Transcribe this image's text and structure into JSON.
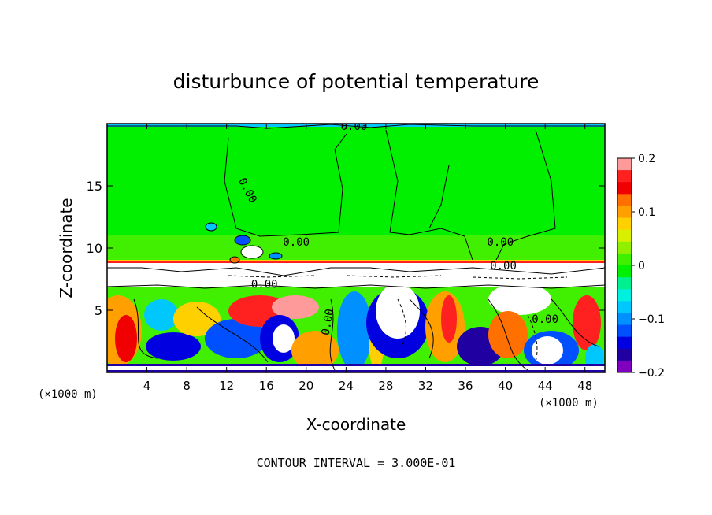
{
  "chart_data": {
    "type": "heatmap",
    "title": "disturbunce of potential temperature",
    "xlabel": "X-coordinate",
    "ylabel": "Z-coordinate",
    "x_unit": "(×1000 m)",
    "z_unit": "(×1000 m)",
    "x_range": [
      0,
      50
    ],
    "z_range": [
      0,
      20
    ],
    "x_ticks": [
      4,
      8,
      12,
      16,
      20,
      24,
      28,
      32,
      36,
      40,
      44,
      48
    ],
    "z_ticks": [
      5,
      10,
      15
    ],
    "colorbar": {
      "range": [
        -0.2,
        0.2
      ],
      "tick_values": [
        0.2,
        0.1,
        0,
        -0.1,
        -0.2
      ],
      "tick_labels": [
        "0.2",
        "0.1",
        "0",
        "−0.1",
        "−0.2"
      ],
      "colors": [
        "#ff9a9a",
        "#ff2020",
        "#f00000",
        "#ff7000",
        "#ffa000",
        "#ffd000",
        "#d8f000",
        "#90f000",
        "#40f000",
        "#00f000",
        "#00f090",
        "#00f0e0",
        "#00c8ff",
        "#0090ff",
        "#0050ff",
        "#0000e0",
        "#2000a0",
        "#8000c0"
      ]
    },
    "contour_labels": [
      {
        "text": "0.00",
        "x": 24.8,
        "z": 19.5
      },
      {
        "text": "0.00",
        "x": 13.8,
        "z": 14.5,
        "rotate": 62
      },
      {
        "text": "0.00",
        "x": 19.0,
        "z": 10.2
      },
      {
        "text": "0.00",
        "x": 39.5,
        "z": 10.2
      },
      {
        "text": "0.00",
        "x": 39.8,
        "z": 8.3
      },
      {
        "text": "0.00",
        "x": 15.8,
        "z": 6.8
      },
      {
        "text": "0.00",
        "x": 22.5,
        "z": 4.0,
        "rotate": -80
      },
      {
        "text": "0.00",
        "x": 44.0,
        "z": 4.0
      }
    ],
    "contour_interval_label": "CONTOUR INTERVAL = 3.000E-01"
  }
}
